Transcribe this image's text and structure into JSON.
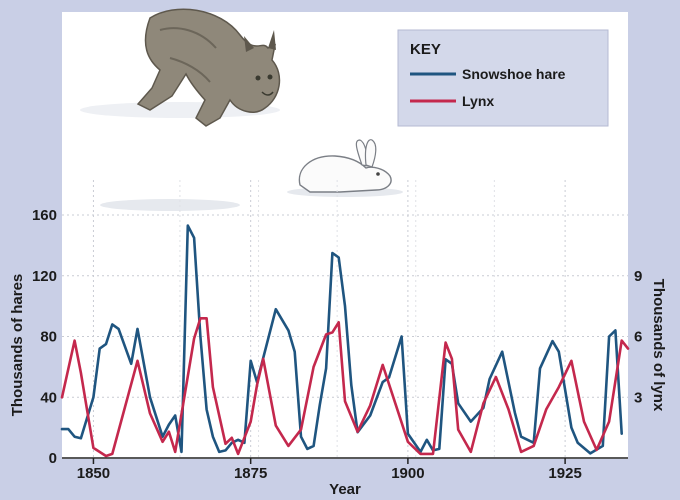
{
  "chart_data": {
    "type": "line",
    "title": "",
    "xlabel": "Year",
    "ylabel_left": "Thousands of hares",
    "ylabel_right": "Thousands of lynx",
    "xlim": [
      1845,
      1935
    ],
    "x_ticks": [
      "1850",
      "1875",
      "1900",
      "1925"
    ],
    "x_tick_values": [
      1850,
      1875,
      1900,
      1925
    ],
    "ylim_left": [
      0,
      160
    ],
    "y_ticks_left": [
      "0",
      "40",
      "80",
      "120",
      "160"
    ],
    "y_tick_values_left": [
      0,
      40,
      80,
      120,
      160
    ],
    "ylim_right": [
      0,
      12
    ],
    "y_ticks_right": [
      "3",
      "6",
      "9"
    ],
    "y_tick_values_right": [
      3,
      6,
      9
    ],
    "grid": true,
    "legend": {
      "title": "KEY",
      "placement": "top-right",
      "entries": [
        "Snowshoe hare",
        "Lynx"
      ]
    },
    "series": [
      {
        "name": "Snowshoe hare",
        "axis": "left",
        "color": "#1f5580",
        "x": [
          1845,
          1846,
          1847,
          1848,
          1850,
          1851,
          1852,
          1853,
          1854,
          1856,
          1857,
          1859,
          1861,
          1862,
          1863,
          1864,
          1865,
          1866,
          1867,
          1868,
          1869,
          1870,
          1871,
          1872,
          1873,
          1874,
          1875,
          1876,
          1879,
          1881,
          1882,
          1883,
          1884,
          1885,
          1886,
          1887,
          1888,
          1889,
          1890,
          1891,
          1892,
          1894,
          1896,
          1897,
          1899,
          1900,
          1901,
          1902,
          1903,
          1904,
          1905,
          1906,
          1907,
          1908,
          1910,
          1912,
          1913,
          1915,
          1917,
          1918,
          1920,
          1921,
          1923,
          1924,
          1926,
          1927,
          1929,
          1931,
          1932,
          1933,
          1934
        ],
        "y": [
          19,
          19,
          14,
          13,
          40,
          72,
          75,
          88,
          85,
          62,
          85,
          40,
          14,
          22,
          28,
          4,
          153,
          145,
          80,
          32,
          14,
          4,
          5,
          10,
          12,
          10,
          64,
          50,
          98,
          84,
          70,
          14,
          6,
          8,
          35,
          59,
          135,
          132,
          100,
          48,
          17,
          28,
          50,
          53,
          80,
          16,
          10,
          4,
          12,
          5,
          6,
          65,
          62,
          36,
          24,
          33,
          52,
          70,
          30,
          14,
          10,
          59,
          77,
          70,
          20,
          10,
          3,
          8,
          80,
          84,
          16
        ]
      },
      {
        "name": "Lynx",
        "axis": "right",
        "color": "#c4284d",
        "x": [
          1845,
          1847,
          1848,
          1850,
          1852,
          1853,
          1855,
          1857,
          1859,
          1861,
          1862,
          1863,
          1866,
          1867,
          1868,
          1869,
          1871,
          1872,
          1873,
          1875,
          1876,
          1877,
          1879,
          1881,
          1883,
          1885,
          1887,
          1888,
          1889,
          1890,
          1892,
          1894,
          1896,
          1898,
          1900,
          1902,
          1904,
          1906,
          1907,
          1908,
          1910,
          1912,
          1914,
          1916,
          1918,
          1920,
          1922,
          1924,
          1926,
          1928,
          1930,
          1932,
          1934,
          1935
        ],
        "y": [
          3.0,
          5.8,
          4.2,
          0.5,
          0.1,
          0.2,
          2.5,
          4.8,
          2.2,
          0.8,
          1.3,
          0.3,
          5.9,
          6.9,
          6.9,
          3.5,
          0.7,
          1.0,
          0.2,
          1.8,
          3.6,
          4.9,
          1.6,
          0.6,
          1.4,
          4.5,
          6.1,
          6.2,
          6.7,
          2.8,
          1.3,
          2.6,
          4.6,
          2.7,
          0.8,
          0.2,
          0.2,
          5.7,
          4.9,
          1.4,
          0.3,
          2.7,
          4.0,
          2.4,
          0.3,
          0.6,
          2.4,
          3.5,
          4.8,
          1.8,
          0.4,
          1.8,
          5.8,
          5.4
        ]
      }
    ]
  }
}
